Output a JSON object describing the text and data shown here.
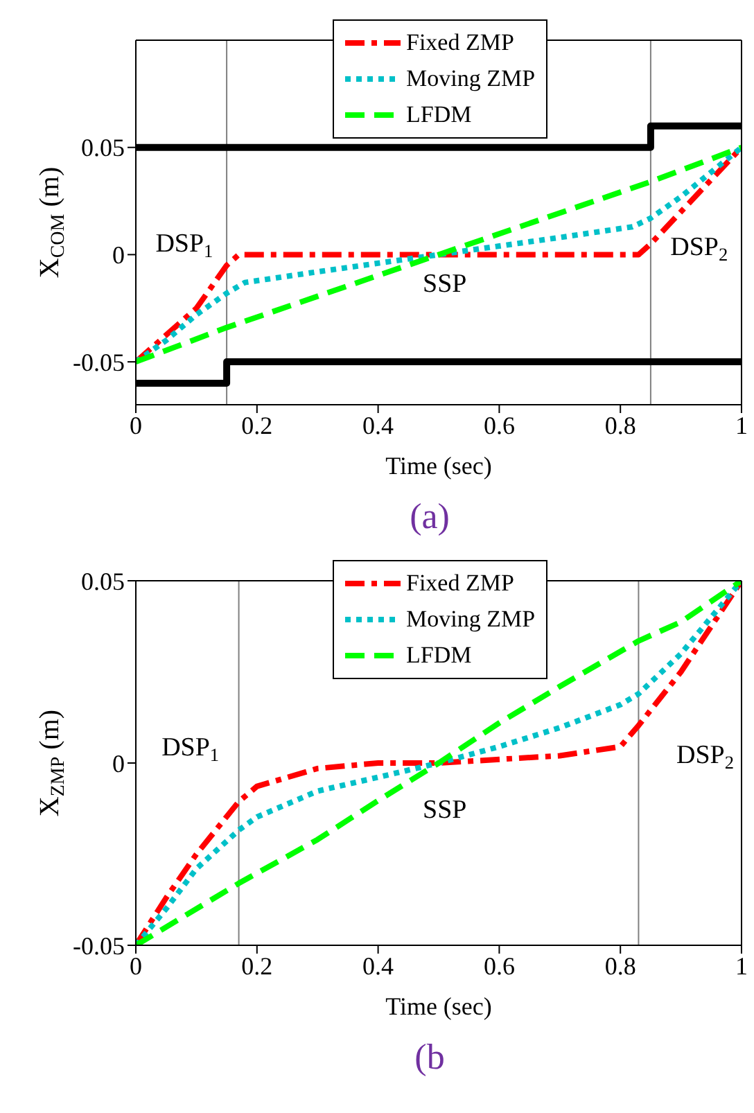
{
  "chart_data": [
    {
      "type": "line",
      "title": "(a)",
      "xlabel": "Time (sec)",
      "ylabel": "X$_{COM}$ (m)",
      "xlim": [
        0,
        1
      ],
      "xticks": [
        0,
        0.2,
        0.4,
        0.6,
        0.8,
        1
      ],
      "ylim": [
        -0.07,
        0.1
      ],
      "yticks": [
        -0.05,
        0,
        0.05
      ],
      "legend": "top",
      "series": [
        {
          "type": "step",
          "color": "#000000",
          "line_style": "solid",
          "x": [
            0,
            0.85,
            1
          ],
          "values": [
            0.05,
            0.06,
            0.06
          ]
        },
        {
          "type": "step",
          "color": "#000000",
          "line_style": "solid",
          "x": [
            0,
            0.15,
            1
          ],
          "values": [
            -0.06,
            -0.05,
            -0.05
          ]
        },
        {
          "name": "Fixed ZMP",
          "color": "#ff0000",
          "line_style": "dashdot",
          "x": [
            0,
            0.1,
            0.15,
            0.17,
            0.83,
            0.85,
            0.9,
            1
          ],
          "values": [
            -0.05,
            -0.025,
            -0.005,
            0,
            0,
            0.005,
            0.02,
            0.05
          ]
        },
        {
          "name": "Moving ZMP",
          "color": "#00c0c8",
          "line_style": "dotted",
          "x": [
            0,
            0.05,
            0.1,
            0.15,
            0.18,
            0.3,
            0.4,
            0.5,
            0.6,
            0.7,
            0.82,
            0.85,
            0.9,
            1
          ],
          "values": [
            -0.05,
            -0.04,
            -0.028,
            -0.018,
            -0.013,
            -0.008,
            -0.004,
            0,
            0.004,
            0.008,
            0.013,
            0.017,
            0.027,
            0.05
          ]
        },
        {
          "name": "LFDM",
          "color": "#00ff00",
          "line_style": "dashed",
          "x": [
            0,
            0.15,
            0.5,
            0.85,
            1
          ],
          "values": [
            -0.05,
            -0.034,
            0,
            0.034,
            0.05
          ]
        }
      ],
      "ref_lines": [
        {
          "axis": "x",
          "value": 0.15,
          "color": "#808080"
        },
        {
          "axis": "x",
          "value": 0.85,
          "color": "#808080"
        }
      ],
      "annotations": [
        "DSP$_{1}$",
        "SSP",
        "DSP$_{2}$"
      ]
    },
    {
      "type": "line",
      "title": "(b",
      "xlabel": "Time (sec)",
      "ylabel": "X$_{ZMP}$ (m)",
      "xlim": [
        0,
        1
      ],
      "xticks": [
        0,
        0.2,
        0.4,
        0.6,
        0.8,
        1
      ],
      "ylim": [
        -0.05,
        0.05
      ],
      "yticks": [
        -0.05,
        0,
        0.05
      ],
      "legend": "top",
      "series": [
        {
          "name": "Fixed ZMP",
          "color": "#ff0000",
          "line_style": "dashdot",
          "x": [
            0,
            0.05,
            0.1,
            0.17,
            0.2,
            0.3,
            0.4,
            0.5,
            0.6,
            0.7,
            0.8,
            0.83,
            0.9,
            1
          ],
          "values": [
            -0.05,
            -0.037,
            -0.025,
            -0.0106,
            -0.0064,
            -0.0015,
            0,
            0,
            0.001,
            0.002,
            0.0045,
            0.0103,
            0.025,
            0.05
          ]
        },
        {
          "name": "Moving ZMP",
          "color": "#00c0c8",
          "line_style": "dotted",
          "x": [
            0,
            0.05,
            0.1,
            0.17,
            0.2,
            0.3,
            0.4,
            0.5,
            0.6,
            0.7,
            0.8,
            0.83,
            0.9,
            1
          ],
          "values": [
            -0.05,
            -0.04,
            -0.029,
            -0.0184,
            -0.0148,
            -0.0077,
            -0.0039,
            0,
            0.0045,
            0.0097,
            0.016,
            0.019,
            0.03,
            0.05
          ]
        },
        {
          "name": "LFDM",
          "color": "#00ff00",
          "line_style": "dashed",
          "x": [
            0,
            0.17,
            0.3,
            0.4,
            0.5,
            0.6,
            0.7,
            0.83,
            0.9,
            1
          ],
          "values": [
            -0.05,
            -0.033,
            -0.021,
            -0.0103,
            0,
            0.011,
            0.021,
            0.0335,
            0.0387,
            0.05
          ]
        }
      ],
      "ref_lines": [
        {
          "axis": "x",
          "value": 0.17,
          "color": "#808080"
        },
        {
          "axis": "x",
          "value": 0.83,
          "color": "#808080"
        }
      ],
      "annotations": [
        "DSP$_{1}$",
        "SSP",
        "DSP$_{2}$"
      ]
    }
  ]
}
